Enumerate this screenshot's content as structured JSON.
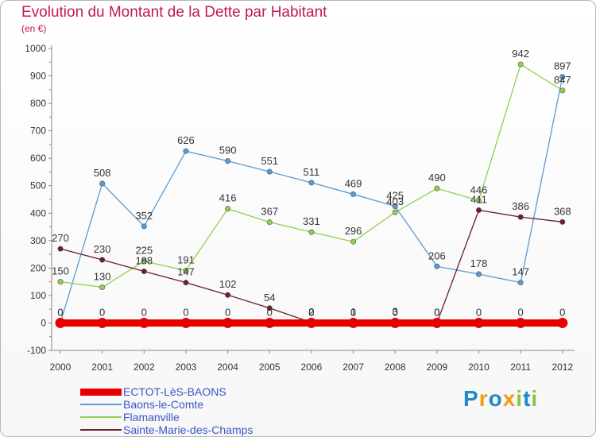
{
  "title": "Evolution du Montant de la Dette par Habitant",
  "subtitle": "(en €)",
  "logo": {
    "text": "Proxiti",
    "letters": [
      {
        "ch": "P",
        "color": "#1e88c9"
      },
      {
        "ch": "r",
        "color": "#f39c12"
      },
      {
        "ch": "o",
        "color": "#1e88c9"
      },
      {
        "ch": "x",
        "color": "#f39c12"
      },
      {
        "ch": "i",
        "color": "#8bc34a"
      },
      {
        "ch": "t",
        "color": "#1e88c9"
      },
      {
        "ch": "i",
        "color": "#8bc34a"
      }
    ]
  },
  "chart_data": {
    "type": "line",
    "title": "Evolution du Montant de la Dette par Habitant",
    "subtitle": "(en €)",
    "x": [
      "2000",
      "2001",
      "2002",
      "2003",
      "2004",
      "2005",
      "2006",
      "2007",
      "2008",
      "2009",
      "2010",
      "2011",
      "2012"
    ],
    "ylim": [
      -100,
      1000
    ],
    "yticks": [
      -100,
      0,
      100,
      200,
      300,
      400,
      500,
      600,
      700,
      800,
      900,
      1000
    ],
    "grid": false,
    "legend_position": "bottom-left",
    "series": [
      {
        "name": "ECTOT-LèS-BAONS",
        "color": "#e60000",
        "values": [
          0,
          0,
          0,
          0,
          0,
          0,
          0,
          0,
          0,
          0,
          0,
          0,
          0
        ]
      },
      {
        "name": "Baons-le-Comte",
        "color": "#5a9bd5",
        "values": [
          0,
          508,
          352,
          626,
          590,
          551,
          511,
          469,
          425,
          206,
          178,
          147,
          897
        ]
      },
      {
        "name": "Flamanville",
        "color": "#8fd14f",
        "values": [
          150,
          130,
          225,
          191,
          416,
          367,
          331,
          296,
          403,
          490,
          446,
          942,
          847
        ]
      },
      {
        "name": "Sainte-Marie-des-Champs",
        "color": "#6b1f2a",
        "values": [
          270,
          230,
          188,
          147,
          102,
          54,
          2,
          1,
          3,
          0,
          411,
          386,
          368
        ]
      }
    ]
  }
}
